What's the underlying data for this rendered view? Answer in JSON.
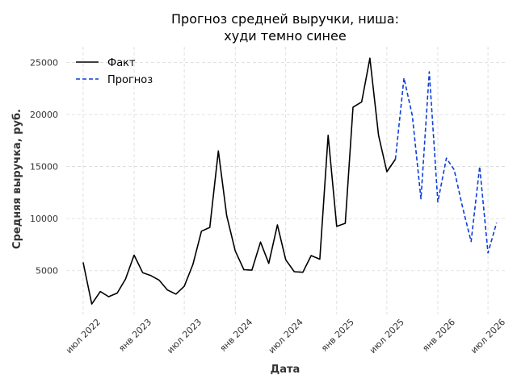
{
  "chart_data": {
    "type": "line",
    "title_line1": "Прогноз средней выручки, ниша:",
    "title_line2": "худи темно синее",
    "xlabel": "Дата",
    "ylabel": "Средняя выручка, руб.",
    "ylim": [
      800,
      26500
    ],
    "xlim": [
      "2022-05-01",
      "2026-08-31"
    ],
    "grid": true,
    "legend_position": "top-left",
    "y_ticks": [
      {
        "value": 5000,
        "label": "5000"
      },
      {
        "value": 10000,
        "label": "10000"
      },
      {
        "value": 15000,
        "label": "15000"
      },
      {
        "value": 20000,
        "label": "20000"
      },
      {
        "value": 25000,
        "label": "25000"
      }
    ],
    "x_ticks": [
      {
        "date": "2022-07-01",
        "label": "июл 2022"
      },
      {
        "date": "2023-01-01",
        "label": "янв 2023"
      },
      {
        "date": "2023-07-01",
        "label": "июл 2023"
      },
      {
        "date": "2024-01-01",
        "label": "янв 2024"
      },
      {
        "date": "2024-07-01",
        "label": "июл 2024"
      },
      {
        "date": "2025-01-01",
        "label": "янв 2025"
      },
      {
        "date": "2025-07-01",
        "label": "июл 2025"
      },
      {
        "date": "2026-01-01",
        "label": "янв 2026"
      },
      {
        "date": "2026-07-01",
        "label": "июл 2026"
      }
    ],
    "series": [
      {
        "name": "Факт",
        "color": "#000000",
        "style": "solid",
        "points": [
          [
            "2022-07-01",
            5800
          ],
          [
            "2022-08-01",
            1800
          ],
          [
            "2022-09-01",
            3000
          ],
          [
            "2022-10-01",
            2500
          ],
          [
            "2022-11-01",
            2850
          ],
          [
            "2022-12-01",
            4200
          ],
          [
            "2023-01-01",
            6500
          ],
          [
            "2023-02-01",
            4800
          ],
          [
            "2023-03-01",
            4550
          ],
          [
            "2023-04-01",
            4100
          ],
          [
            "2023-05-01",
            3150
          ],
          [
            "2023-06-01",
            2750
          ],
          [
            "2023-07-01",
            3500
          ],
          [
            "2023-08-01",
            5600
          ],
          [
            "2023-09-01",
            8800
          ],
          [
            "2023-10-01",
            9150
          ],
          [
            "2023-11-01",
            16500
          ],
          [
            "2023-12-01",
            10300
          ],
          [
            "2024-01-01",
            6900
          ],
          [
            "2024-02-01",
            5100
          ],
          [
            "2024-03-01",
            5050
          ],
          [
            "2024-04-01",
            7750
          ],
          [
            "2024-05-01",
            5700
          ],
          [
            "2024-06-01",
            9400
          ],
          [
            "2024-07-01",
            6050
          ],
          [
            "2024-08-01",
            4900
          ],
          [
            "2024-09-01",
            4850
          ],
          [
            "2024-10-01",
            6450
          ],
          [
            "2024-11-01",
            6100
          ],
          [
            "2024-12-01",
            18000
          ],
          [
            "2025-01-01",
            9250
          ],
          [
            "2025-02-01",
            9550
          ],
          [
            "2025-03-01",
            20700
          ],
          [
            "2025-04-01",
            21200
          ],
          [
            "2025-05-01",
            25400
          ],
          [
            "2025-06-01",
            18000
          ],
          [
            "2025-07-01",
            14500
          ],
          [
            "2025-08-01",
            15700
          ]
        ]
      },
      {
        "name": "Прогноз",
        "color": "#0b3fd9",
        "style": "dashed",
        "points": [
          [
            "2025-08-01",
            15700
          ],
          [
            "2025-09-01",
            23500
          ],
          [
            "2025-10-01",
            19900
          ],
          [
            "2025-11-01",
            11900
          ],
          [
            "2025-12-01",
            24100
          ],
          [
            "2026-01-01",
            11600
          ],
          [
            "2026-02-01",
            15800
          ],
          [
            "2026-03-01",
            14700
          ],
          [
            "2026-04-01",
            11000
          ],
          [
            "2026-05-01",
            7800
          ],
          [
            "2026-06-01",
            15000
          ],
          [
            "2026-07-01",
            6700
          ],
          [
            "2026-08-01",
            9600
          ]
        ]
      }
    ]
  }
}
